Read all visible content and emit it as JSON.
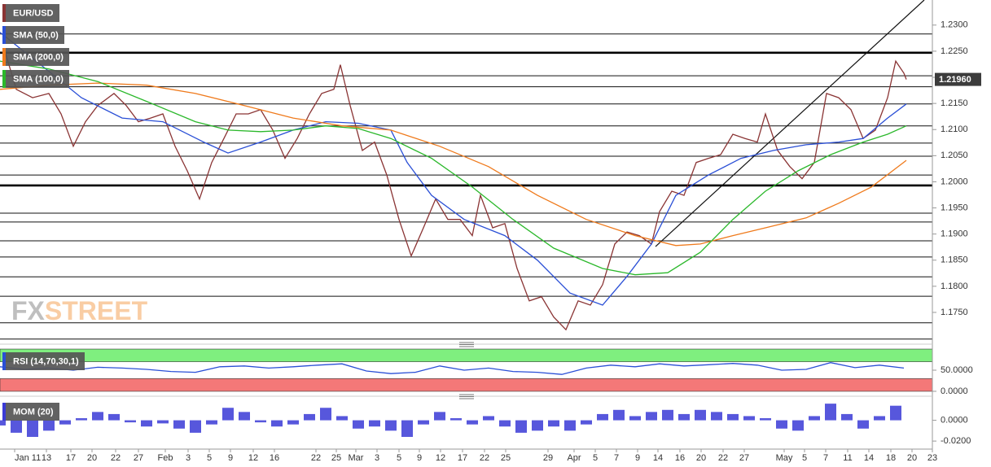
{
  "chart_data": [
    {
      "type": "line",
      "xlim": [
        0,
        1145
      ],
      "ylim": [
        1.1697,
        1.2348
      ],
      "yticks": [
        {
          "value": 1.23,
          "label": "1.2300"
        },
        {
          "value": 1.225,
          "label": "1.2250"
        },
        {
          "value": 1.22,
          "label": "1.2200"
        },
        {
          "value": 1.215,
          "label": "1.2150"
        },
        {
          "value": 1.21,
          "label": "1.2100"
        },
        {
          "value": 1.205,
          "label": "1.2050"
        },
        {
          "value": 1.2,
          "label": "1.2000"
        },
        {
          "value": 1.195,
          "label": "1.1950"
        },
        {
          "value": 1.19,
          "label": "1.1900"
        },
        {
          "value": 1.185,
          "label": "1.1850"
        },
        {
          "value": 1.18,
          "label": "1.1800"
        },
        {
          "value": 1.175,
          "label": "1.1750"
        }
      ],
      "xticks": [
        {
          "value": 18,
          "label": "Jan 11"
        },
        {
          "value": 57,
          "label": "13"
        },
        {
          "value": 87,
          "label": "17"
        },
        {
          "value": 113,
          "label": "20"
        },
        {
          "value": 142,
          "label": "22"
        },
        {
          "value": 170,
          "label": "27"
        },
        {
          "value": 203,
          "label": "Feb"
        },
        {
          "value": 231,
          "label": "3"
        },
        {
          "value": 257,
          "label": "5"
        },
        {
          "value": 283,
          "label": "9"
        },
        {
          "value": 311,
          "label": "12"
        },
        {
          "value": 337,
          "label": "16"
        },
        {
          "value": 388,
          "label": "22"
        },
        {
          "value": 413,
          "label": "25"
        },
        {
          "value": 437,
          "label": "Mar"
        },
        {
          "value": 463,
          "label": "3"
        },
        {
          "value": 490,
          "label": "5"
        },
        {
          "value": 515,
          "label": "9"
        },
        {
          "value": 541,
          "label": "12"
        },
        {
          "value": 568,
          "label": "17"
        },
        {
          "value": 595,
          "label": "22"
        },
        {
          "value": 621,
          "label": "25"
        },
        {
          "value": 673,
          "label": "29"
        },
        {
          "value": 705,
          "label": "Apr"
        },
        {
          "value": 731,
          "label": "5"
        },
        {
          "value": 757,
          "label": "7"
        },
        {
          "value": 783,
          "label": "9"
        },
        {
          "value": 808,
          "label": "14"
        },
        {
          "value": 835,
          "label": "16"
        },
        {
          "value": 861,
          "label": "20"
        },
        {
          "value": 888,
          "label": "22"
        },
        {
          "value": 914,
          "label": "27"
        },
        {
          "value": 963,
          "label": "May"
        },
        {
          "value": 988,
          "label": "5"
        },
        {
          "value": 1014,
          "label": "7"
        },
        {
          "value": 1041,
          "label": "11"
        },
        {
          "value": 1067,
          "label": "14"
        },
        {
          "value": 1094,
          "label": "18"
        },
        {
          "value": 1120,
          "label": "20"
        },
        {
          "value": 1145,
          "label": "23"
        }
      ],
      "series": [
        {
          "name": "EUR/USD",
          "color": "#8a3434",
          "x": [
            5,
            20,
            40,
            60,
            75,
            90,
            105,
            120,
            140,
            155,
            170,
            185,
            200,
            215,
            230,
            245,
            260,
            275,
            290,
            305,
            320,
            335,
            350,
            365,
            380,
            395,
            410,
            418,
            430,
            445,
            460,
            475,
            490,
            505,
            520,
            535,
            550,
            565,
            580,
            590,
            605,
            620,
            635,
            650,
            665,
            680,
            695,
            710,
            725,
            740,
            755,
            770,
            785,
            800,
            810,
            825,
            840,
            855,
            870,
            885,
            900,
            915,
            930,
            940,
            955,
            970,
            985,
            1000,
            1015,
            1030,
            1045,
            1060,
            1075,
            1090,
            1100,
            1110,
            1113
          ],
          "values": [
            1.2255,
            1.2177,
            1.2161,
            1.2169,
            1.213,
            1.2068,
            1.2115,
            1.2146,
            1.2169,
            1.2146,
            1.2115,
            1.2122,
            1.213,
            1.2068,
            1.2021,
            1.1967,
            1.2037,
            1.2083,
            1.213,
            1.213,
            1.2138,
            1.2099,
            1.2045,
            1.2083,
            1.213,
            1.2169,
            1.2177,
            1.2224,
            1.2146,
            1.206,
            1.2076,
            1.2013,
            1.1928,
            1.1858,
            1.1912,
            1.1967,
            1.1928,
            1.1928,
            1.1897,
            1.1974,
            1.1912,
            1.192,
            1.1834,
            1.1772,
            1.178,
            1.1741,
            1.1717,
            1.1772,
            1.1764,
            1.1803,
            1.1881,
            1.1904,
            1.1897,
            1.1881,
            1.1943,
            1.1982,
            1.1974,
            1.2037,
            1.2045,
            1.2052,
            1.2091,
            1.2083,
            1.2076,
            1.213,
            1.206,
            1.2029,
            1.2006,
            1.2037,
            1.2169,
            1.2161,
            1.2138,
            1.2083,
            1.2099,
            1.2161,
            1.2231,
            1.2208,
            1.2196
          ]
        },
        {
          "name": "SMA (50,0)",
          "color": "#2a4fd6",
          "x": [
            0,
            50,
            100,
            150,
            200,
            250,
            280,
            320,
            360,
            400,
            440,
            480,
            500,
            530,
            570,
            620,
            660,
            700,
            740,
            770,
            800,
            830,
            870,
            910,
            950,
            990,
            1030,
            1060,
            1090,
            1113
          ],
          "values": [
            1.2286,
            1.2224,
            1.2161,
            1.2122,
            1.2115,
            1.2076,
            1.2055,
            1.2076,
            1.2099,
            1.2115,
            1.2112,
            1.2099,
            1.2037,
            1.1974,
            1.1928,
            1.1897,
            1.185,
            1.1787,
            1.1764,
            1.1819,
            1.1881,
            1.1974,
            1.2013,
            1.2045,
            1.206,
            1.2071,
            1.2076,
            1.2083,
            1.2122,
            1.2149
          ]
        },
        {
          "name": "SMA (200,0)",
          "color": "#ef7a1c",
          "x": [
            0,
            60,
            120,
            180,
            240,
            300,
            360,
            420,
            480,
            540,
            600,
            660,
            720,
            780,
            830,
            860,
            900,
            940,
            990,
            1030,
            1070,
            1113
          ],
          "values": [
            1.2177,
            1.2185,
            1.2189,
            1.2185,
            1.2169,
            1.2146,
            1.2122,
            1.2107,
            1.2099,
            1.2068,
            1.2029,
            1.1974,
            1.1928,
            1.1897,
            1.1878,
            1.1881,
            1.1897,
            1.1912,
            1.1931,
            1.1959,
            1.199,
            1.2041
          ]
        },
        {
          "name": "SMA (100,0)",
          "color": "#2bb82b",
          "x": [
            0,
            60,
            120,
            180,
            240,
            280,
            320,
            360,
            400,
            440,
            480,
            530,
            580,
            630,
            680,
            740,
            780,
            820,
            860,
            900,
            940,
            980,
            1020,
            1060,
            1090,
            1113
          ],
          "values": [
            1.2231,
            1.2216,
            1.2192,
            1.2154,
            1.2115,
            1.2099,
            1.2096,
            1.2099,
            1.2107,
            1.2102,
            1.2083,
            1.2045,
            1.199,
            1.1928,
            1.1873,
            1.1834,
            1.1822,
            1.1826,
            1.1865,
            1.1928,
            1.1982,
            1.2021,
            1.2052,
            1.2076,
            1.2091,
            1.2107
          ]
        }
      ],
      "levels": [
        1.2283,
        1.2203,
        1.2182,
        1.2149,
        1.2107,
        1.2074,
        1.2049,
        1.2013,
        1.194,
        1.1923,
        1.1887,
        1.1856,
        1.1818,
        1.1781,
        1.173,
        1.1699
      ],
      "key_levels": [
        1.2247,
        1.1993
      ],
      "trendline": {
        "x": [
          805,
          1135
        ],
        "values": [
          1.1876,
          1.2348
        ]
      },
      "last_price": {
        "value": 1.2196,
        "label": "1.21960"
      }
    },
    {
      "type": "line",
      "xlim": [
        0,
        1145
      ],
      "ylim": [
        -2,
        102
      ],
      "yticks": [
        {
          "value": 50,
          "label": "50.0000"
        },
        {
          "value": 0,
          "label": "0.0000"
        }
      ],
      "bands": [
        {
          "from": 70,
          "to": 100,
          "color": "#7fef7f"
        },
        {
          "from": 0,
          "to": 30,
          "color": "#f47878"
        }
      ],
      "series": [
        {
          "name": "RSI (14,70,30,1)",
          "color": "#2a4fd6",
          "x": [
            0,
            30,
            60,
            90,
            120,
            150,
            180,
            210,
            240,
            270,
            300,
            330,
            360,
            390,
            420,
            450,
            480,
            510,
            540,
            570,
            600,
            630,
            660,
            690,
            720,
            750,
            780,
            810,
            840,
            870,
            900,
            930,
            960,
            990,
            1020,
            1050,
            1080,
            1110
          ],
          "values": [
            58,
            52,
            55,
            50,
            57,
            55,
            52,
            47,
            45,
            58,
            60,
            55,
            58,
            62,
            65,
            48,
            42,
            45,
            60,
            50,
            55,
            47,
            45,
            40,
            55,
            62,
            58,
            65,
            60,
            63,
            66,
            62,
            50,
            52,
            68,
            56,
            62,
            55
          ]
        }
      ]
    },
    {
      "type": "bar",
      "xlim": [
        0,
        1145
      ],
      "ylim": [
        -0.0246,
        0.0208
      ],
      "yticks": [
        {
          "value": 0,
          "label": "0.0000"
        },
        {
          "value": -0.02,
          "label": "-0.0200"
        }
      ],
      "series": [
        {
          "name": "MOM (20)",
          "color": "#3a3ad6",
          "x": [
            0,
            20,
            40,
            60,
            80,
            100,
            120,
            140,
            160,
            180,
            200,
            220,
            240,
            260,
            280,
            300,
            320,
            340,
            360,
            380,
            400,
            420,
            440,
            460,
            480,
            500,
            520,
            540,
            560,
            580,
            600,
            620,
            640,
            660,
            680,
            700,
            720,
            740,
            760,
            780,
            800,
            820,
            840,
            860,
            880,
            900,
            920,
            940,
            960,
            980,
            1000,
            1020,
            1040,
            1060,
            1080,
            1100
          ],
          "values": [
            -0.005,
            -0.012,
            -0.016,
            -0.01,
            -0.004,
            0.002,
            0.008,
            0.006,
            -0.002,
            -0.006,
            -0.003,
            -0.008,
            -0.012,
            -0.004,
            0.012,
            0.008,
            -0.002,
            -0.006,
            -0.004,
            0.006,
            0.012,
            0.004,
            -0.008,
            -0.006,
            -0.01,
            -0.016,
            -0.004,
            0.008,
            0.002,
            -0.004,
            0.004,
            -0.006,
            -0.012,
            -0.01,
            -0.006,
            -0.01,
            -0.004,
            0.006,
            0.01,
            0.004,
            0.008,
            0.01,
            0.006,
            0.01,
            0.008,
            0.006,
            0.004,
            0.002,
            -0.008,
            -0.01,
            0.004,
            0.016,
            0.006,
            -0.008,
            0.004,
            0.014
          ]
        }
      ]
    }
  ],
  "watermark": [
    "FX",
    "STREET"
  ]
}
